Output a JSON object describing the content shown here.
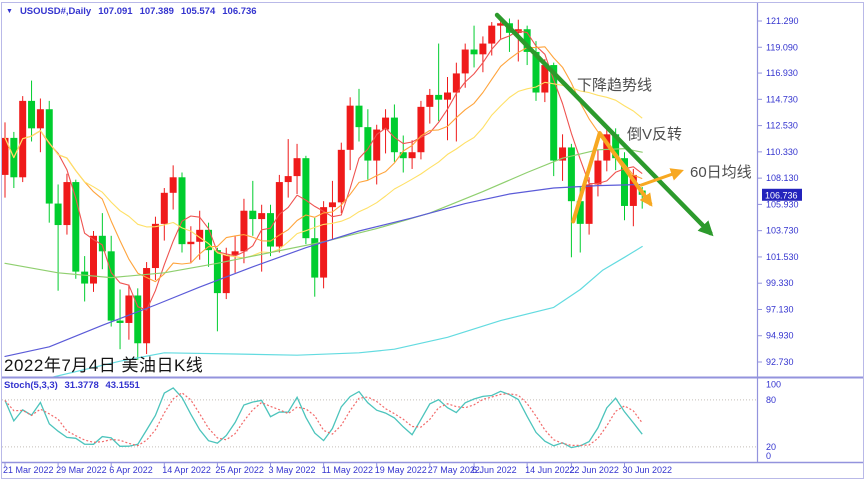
{
  "header": {
    "dropdown_icon": "▼",
    "symbol": "USOUSD#,Daily",
    "open": "107.091",
    "high": "107.389",
    "low": "105.574",
    "close": "106.736"
  },
  "caption": "2022年7月4日 美油日K线",
  "annotations": {
    "trendline": "下降趋势线",
    "reversal": "倒V反转",
    "ma60": "60日均线"
  },
  "indicator": {
    "name": "Stoch(5,3,3)",
    "k_value": "31.3778",
    "d_value": "43.1551"
  },
  "axis": {
    "price_tag": "106.736",
    "y_ticks": [
      "121.290",
      "119.090",
      "116.930",
      "114.730",
      "112.530",
      "110.330",
      "108.130",
      "105.930",
      "103.730",
      "101.530",
      "99.330",
      "97.130",
      "94.930",
      "92.730"
    ],
    "x_ticks": [
      {
        "label": "21 Mar 2022",
        "i": 0
      },
      {
        "label": "29 Mar 2022",
        "i": 6
      },
      {
        "label": "6 Apr 2022",
        "i": 12
      },
      {
        "label": "14 Apr 2022",
        "i": 18
      },
      {
        "label": "25 Apr 2022",
        "i": 24
      },
      {
        "label": "3 May 2022",
        "i": 30
      },
      {
        "label": "11 May 2022",
        "i": 36
      },
      {
        "label": "19 May 2022",
        "i": 42
      },
      {
        "label": "27 May 2022",
        "i": 48
      },
      {
        "label": "6 Jun 2022",
        "i": 53
      },
      {
        "label": "14 Jun 2022",
        "i": 59
      },
      {
        "label": "22 Jun 2022",
        "i": 64
      },
      {
        "label": "30 Jun 2022",
        "i": 70
      }
    ],
    "stoch_ticks": [
      {
        "label": "100",
        "v": 100
      },
      {
        "label": "80",
        "v": 80
      },
      {
        "label": "20",
        "v": 20
      },
      {
        "label": "0",
        "v": 0
      }
    ]
  },
  "colors": {
    "up": "#ef1a1a",
    "down": "#00cd2e",
    "ma5": "#ef5350",
    "ma10": "#ffa43c",
    "ma20": "#ffe066",
    "ma40": "#8fcf6f",
    "ma60": "#5b5bd8",
    "ma100": "#63dbe0",
    "trend": "#2c9a2c",
    "annotation": "#f7a821",
    "axis_text": "#3434cf",
    "axis_line": "#9393dd",
    "border": "#b9b9e8",
    "k_line": "#4cc4bc",
    "d_line": "#f26a6a",
    "level": "#c4beb6",
    "tag_bg": "#2323bc",
    "tag_text": "#ffffff"
  },
  "chart_data": {
    "type": "candlestick",
    "symbol": "USOUSD#",
    "timeframe": "Daily",
    "y_axis_range": [
      92.73,
      121.29
    ],
    "candles": [
      [
        108.4,
        112.8,
        106.5,
        111.5
      ],
      [
        111.5,
        112.0,
        107.3,
        108.2
      ],
      [
        108.2,
        115.0,
        107.8,
        114.6
      ],
      [
        114.6,
        116.3,
        111.2,
        112.3
      ],
      [
        112.3,
        114.8,
        110.3,
        113.9
      ],
      [
        113.9,
        114.6,
        104.4,
        106.0
      ],
      [
        106.0,
        107.6,
        98.7,
        104.2
      ],
      [
        104.2,
        108.5,
        103.4,
        107.8
      ],
      [
        107.8,
        108.0,
        99.7,
        100.3
      ],
      [
        100.3,
        101.6,
        97.8,
        99.3
      ],
      [
        99.3,
        103.7,
        98.6,
        103.3
      ],
      [
        103.3,
        105.2,
        100.5,
        102.0
      ],
      [
        102.0,
        103.3,
        95.7,
        96.2
      ],
      [
        96.2,
        98.8,
        93.8,
        96.0
      ],
      [
        96.0,
        99.2,
        94.6,
        98.3
      ],
      [
        98.3,
        98.9,
        92.9,
        94.3
      ],
      [
        94.3,
        101.1,
        93.4,
        100.6
      ],
      [
        100.6,
        104.9,
        99.6,
        104.3
      ],
      [
        104.3,
        107.3,
        102.9,
        106.9
      ],
      [
        106.9,
        109.2,
        105.5,
        108.2
      ],
      [
        108.2,
        108.6,
        101.9,
        102.6
      ],
      [
        102.6,
        104.1,
        101.0,
        102.8
      ],
      [
        102.8,
        105.4,
        101.3,
        103.8
      ],
      [
        103.8,
        104.4,
        100.7,
        102.1
      ],
      [
        102.1,
        102.3,
        95.3,
        98.5
      ],
      [
        98.5,
        102.3,
        98.0,
        101.7
      ],
      [
        101.7,
        103.3,
        100.2,
        102.0
      ],
      [
        102.0,
        106.4,
        101.0,
        105.4
      ],
      [
        105.4,
        107.9,
        103.3,
        104.7
      ],
      [
        104.7,
        105.9,
        100.3,
        105.2
      ],
      [
        105.2,
        105.9,
        101.6,
        102.4
      ],
      [
        102.4,
        108.4,
        101.9,
        107.8
      ],
      [
        107.8,
        111.4,
        106.5,
        108.3
      ],
      [
        108.3,
        111.0,
        106.8,
        109.8
      ],
      [
        109.8,
        110.0,
        102.6,
        103.1
      ],
      [
        103.1,
        104.8,
        98.2,
        99.8
      ],
      [
        99.8,
        106.2,
        98.9,
        105.7
      ],
      [
        105.7,
        107.9,
        103.0,
        106.1
      ],
      [
        106.1,
        111.1,
        105.2,
        110.5
      ],
      [
        110.5,
        114.9,
        108.8,
        114.2
      ],
      [
        114.2,
        115.6,
        111.2,
        112.4
      ],
      [
        112.4,
        113.9,
        108.0,
        109.6
      ],
      [
        109.6,
        112.6,
        107.6,
        112.2
      ],
      [
        112.2,
        113.9,
        110.2,
        113.2
      ],
      [
        113.2,
        114.3,
        109.5,
        110.3
      ],
      [
        110.3,
        111.7,
        108.6,
        109.8
      ],
      [
        109.8,
        111.3,
        108.9,
        110.3
      ],
      [
        110.3,
        114.6,
        109.7,
        114.1
      ],
      [
        114.1,
        115.6,
        112.7,
        115.1
      ],
      [
        115.1,
        119.4,
        112.9,
        114.7
      ],
      [
        114.7,
        116.6,
        111.3,
        115.3
      ],
      [
        115.3,
        117.8,
        111.2,
        116.9
      ],
      [
        116.9,
        119.4,
        115.7,
        118.9
      ],
      [
        118.9,
        120.9,
        117.4,
        118.5
      ],
      [
        118.5,
        120.0,
        117.0,
        119.4
      ],
      [
        119.4,
        121.2,
        118.4,
        120.9
      ],
      [
        120.9,
        121.6,
        119.8,
        121.1
      ],
      [
        121.1,
        121.5,
        118.7,
        120.3
      ],
      [
        120.3,
        121.4,
        117.9,
        120.6
      ],
      [
        120.6,
        120.9,
        117.6,
        118.7
      ],
      [
        118.7,
        119.6,
        114.6,
        115.3
      ],
      [
        115.3,
        118.1,
        114.5,
        117.6
      ],
      [
        117.6,
        117.8,
        108.3,
        109.6
      ],
      [
        109.6,
        111.8,
        107.9,
        110.7
      ],
      [
        110.7,
        111.0,
        101.5,
        106.2
      ],
      [
        106.2,
        107.4,
        101.9,
        104.3
      ],
      [
        104.3,
        108.2,
        103.4,
        107.6
      ],
      [
        107.6,
        110.5,
        106.6,
        109.6
      ],
      [
        109.6,
        112.5,
        108.7,
        111.8
      ],
      [
        111.8,
        112.3,
        108.8,
        109.8
      ],
      [
        109.8,
        110.3,
        104.6,
        105.8
      ],
      [
        105.8,
        108.9,
        104.1,
        108.4
      ],
      [
        107.091,
        107.389,
        105.574,
        106.736
      ]
    ],
    "moving_averages": {
      "computed": [
        {
          "name": "MA5",
          "period": 5,
          "color_key": "ma5"
        },
        {
          "name": "MA10",
          "period": 10,
          "color_key": "ma10"
        },
        {
          "name": "MA20",
          "period": 20,
          "color_key": "ma20"
        }
      ],
      "polylines": [
        {
          "name": "MA40",
          "color_key": "ma40",
          "points": [
            [
              0,
              101.0
            ],
            [
              6,
              100.2
            ],
            [
              12,
              99.8
            ],
            [
              18,
              100.2
            ],
            [
              24,
              101.0
            ],
            [
              30,
              101.9
            ],
            [
              36,
              102.8
            ],
            [
              42,
              103.9
            ],
            [
              48,
              105.2
            ],
            [
              54,
              107.0
            ],
            [
              59,
              108.6
            ],
            [
              63,
              109.8
            ],
            [
              67,
              110.5
            ],
            [
              70,
              110.6
            ],
            [
              72,
              110.3
            ]
          ]
        },
        {
          "name": "MA60",
          "color_key": "ma60",
          "points": [
            [
              0,
              93.2
            ],
            [
              5,
              94.0
            ],
            [
              11,
              95.8
            ],
            [
              17,
              97.5
            ],
            [
              22,
              99.0
            ],
            [
              28,
              100.7
            ],
            [
              34,
              102.3
            ],
            [
              40,
              103.7
            ],
            [
              46,
              104.8
            ],
            [
              52,
              106.0
            ],
            [
              57,
              106.8
            ],
            [
              62,
              107.3
            ],
            [
              67,
              107.5
            ],
            [
              72,
              107.6
            ]
          ]
        },
        {
          "name": "MA100",
          "color_key": "ma100",
          "points": [
            [
              5,
              91.4
            ],
            [
              13,
              92.8
            ],
            [
              18,
              93.5
            ],
            [
              26,
              93.4
            ],
            [
              33,
              93.3
            ],
            [
              40,
              93.5
            ],
            [
              44,
              93.8
            ],
            [
              50,
              94.8
            ],
            [
              56,
              96.2
            ],
            [
              62,
              97.3
            ],
            [
              65,
              98.8
            ],
            [
              67.5,
              100.4
            ],
            [
              70,
              101.5
            ],
            [
              72,
              102.4
            ]
          ]
        }
      ]
    },
    "stochastic": {
      "k_period": 5,
      "slowing": 3,
      "d_period": 3,
      "levels": [
        80,
        20
      ]
    },
    "drawings": {
      "trend_line": {
        "from": [
          55.6,
          121.79
        ],
        "to": [
          79.7,
          103.53
        ]
      },
      "inverted_v_arrow": {
        "points": [
          [
            64.2,
            104.5
          ],
          [
            67.2,
            111.9
          ],
          [
            72.9,
            106.0
          ]
        ]
      },
      "ma60_arrow": {
        "from": [
          71.9,
          107.55
        ],
        "to": [
          76.3,
          108.7
        ]
      }
    }
  }
}
